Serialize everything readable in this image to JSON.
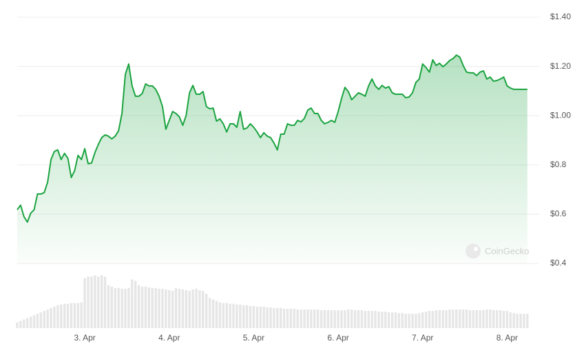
{
  "chart_data": {
    "type": "line",
    "color": "#1aa33f",
    "volume_color": "#e6e6e6",
    "watermark": "CoinGecko",
    "xlim": [
      2.2,
      8.38
    ],
    "xticks": [
      {
        "value": 3,
        "label": "3. Apr"
      },
      {
        "value": 4,
        "label": "4. Apr"
      },
      {
        "value": 5,
        "label": "5. Apr"
      },
      {
        "value": 6,
        "label": "6. Apr"
      },
      {
        "value": 7,
        "label": "7. Apr"
      },
      {
        "value": 8,
        "label": "8. Apr"
      }
    ],
    "ylim": [
      0.4,
      1.4
    ],
    "yticks": [
      {
        "value": 0.4,
        "label": "$0.4"
      },
      {
        "value": 0.6,
        "label": "$0.6"
      },
      {
        "value": 0.8,
        "label": "$0.8"
      },
      {
        "value": 1.0,
        "label": "$1.00"
      },
      {
        "value": 1.2,
        "label": "$1.20"
      },
      {
        "value": 1.4,
        "label": "$1.40"
      }
    ],
    "grid": true,
    "x": [
      2.2,
      2.24,
      2.28,
      2.32,
      2.36,
      2.4,
      2.44,
      2.48,
      2.52,
      2.56,
      2.6,
      2.64,
      2.68,
      2.72,
      2.76,
      2.8,
      2.84,
      2.88,
      2.92,
      2.96,
      3.0,
      3.04,
      3.08,
      3.12,
      3.16,
      3.2,
      3.24,
      3.28,
      3.32,
      3.36,
      3.4,
      3.44,
      3.48,
      3.52,
      3.56,
      3.6,
      3.64,
      3.68,
      3.72,
      3.76,
      3.8,
      3.84,
      3.88,
      3.92,
      3.96,
      4.0,
      4.04,
      4.08,
      4.12,
      4.16,
      4.2,
      4.24,
      4.28,
      4.32,
      4.36,
      4.4,
      4.44,
      4.48,
      4.52,
      4.56,
      4.6,
      4.64,
      4.68,
      4.72,
      4.76,
      4.8,
      4.84,
      4.88,
      4.92,
      4.96,
      5.0,
      5.04,
      5.08,
      5.12,
      5.16,
      5.2,
      5.24,
      5.28,
      5.32,
      5.36,
      5.4,
      5.44,
      5.48,
      5.52,
      5.56,
      5.6,
      5.64,
      5.68,
      5.72,
      5.76,
      5.8,
      5.84,
      5.88,
      5.92,
      5.96,
      6.0,
      6.04,
      6.08,
      6.12,
      6.16,
      6.2,
      6.24,
      6.28,
      6.32,
      6.36,
      6.4,
      6.44,
      6.48,
      6.52,
      6.56,
      6.6,
      6.64,
      6.68,
      6.72,
      6.76,
      6.8,
      6.84,
      6.88,
      6.92,
      6.96,
      7.0,
      7.04,
      7.08,
      7.12,
      7.16,
      7.2,
      7.24,
      7.28,
      7.32,
      7.36,
      7.4,
      7.44,
      7.48,
      7.52,
      7.56,
      7.6,
      7.64,
      7.68,
      7.72,
      7.76,
      7.8,
      7.84,
      7.88,
      7.92,
      7.96,
      8.0,
      8.04,
      8.08,
      8.12,
      8.16,
      8.2,
      8.24
    ],
    "values": [
      0.618,
      0.637,
      0.59,
      0.568,
      0.604,
      0.618,
      0.682,
      0.682,
      0.688,
      0.73,
      0.822,
      0.855,
      0.861,
      0.822,
      0.847,
      0.827,
      0.749,
      0.777,
      0.839,
      0.822,
      0.866,
      0.805,
      0.808,
      0.85,
      0.883,
      0.911,
      0.922,
      0.917,
      0.906,
      0.917,
      0.939,
      1.009,
      1.168,
      1.21,
      1.121,
      1.079,
      1.079,
      1.09,
      1.129,
      1.121,
      1.121,
      1.107,
      1.079,
      1.037,
      0.945,
      0.981,
      1.017,
      1.009,
      0.995,
      0.961,
      1.001,
      1.093,
      1.123,
      1.087,
      1.087,
      1.098,
      1.037,
      1.028,
      1.031,
      0.978,
      0.987,
      0.967,
      0.934,
      0.967,
      0.967,
      0.953,
      1.017,
      0.945,
      0.95,
      0.967,
      0.953,
      0.934,
      0.911,
      0.931,
      0.917,
      0.911,
      0.889,
      0.861,
      0.925,
      0.925,
      0.967,
      0.961,
      0.961,
      0.981,
      0.975,
      0.989,
      1.023,
      1.031,
      1.009,
      1.009,
      0.981,
      0.967,
      0.973,
      0.981,
      0.973,
      1.017,
      1.07,
      1.115,
      1.098,
      1.065,
      1.079,
      1.093,
      1.087,
      1.079,
      1.121,
      1.149,
      1.121,
      1.107,
      1.123,
      1.112,
      1.118,
      1.093,
      1.087,
      1.087,
      1.087,
      1.073,
      1.076,
      1.093,
      1.135,
      1.149,
      1.21,
      1.196,
      1.177,
      1.227,
      1.204,
      1.213,
      1.199,
      1.21,
      1.224,
      1.232,
      1.246,
      1.238,
      1.204,
      1.177,
      1.174,
      1.174,
      1.163,
      1.177,
      1.182,
      1.149,
      1.157,
      1.14,
      1.143,
      1.149,
      1.157,
      1.121,
      1.112,
      1.107,
      1.107,
      1.107,
      1.107,
      1.107
    ],
    "volume": [
      8,
      10,
      12,
      14,
      16,
      18,
      20,
      22,
      24,
      26,
      28,
      30,
      32,
      33,
      34,
      34,
      35,
      35,
      35,
      36,
      70,
      72,
      72,
      74,
      72,
      74,
      72,
      60,
      58,
      56,
      56,
      55,
      55,
      56,
      68,
      66,
      60,
      58,
      58,
      57,
      56,
      56,
      55,
      55,
      54,
      53,
      52,
      56,
      55,
      54,
      53,
      52,
      54,
      55,
      53,
      52,
      48,
      42,
      40,
      38,
      36,
      35,
      35,
      34,
      34,
      33,
      33,
      32,
      32,
      31,
      31,
      30,
      30,
      30,
      29,
      29,
      28,
      28,
      28,
      27,
      27,
      27,
      27,
      26,
      26,
      26,
      26,
      26,
      26,
      26,
      25,
      25,
      25,
      25,
      25,
      25,
      25,
      25,
      26,
      26,
      25,
      25,
      25,
      24,
      24,
      24,
      24,
      23,
      23,
      23,
      22,
      22,
      22,
      21,
      21,
      20,
      20,
      20,
      20,
      21,
      22,
      23,
      24,
      24,
      25,
      25,
      25,
      25,
      26,
      26,
      26,
      26,
      26,
      26,
      25,
      25,
      25,
      25,
      25,
      26,
      26,
      25,
      25,
      25,
      24,
      24,
      22,
      21,
      20,
      20,
      20,
      20
    ]
  }
}
